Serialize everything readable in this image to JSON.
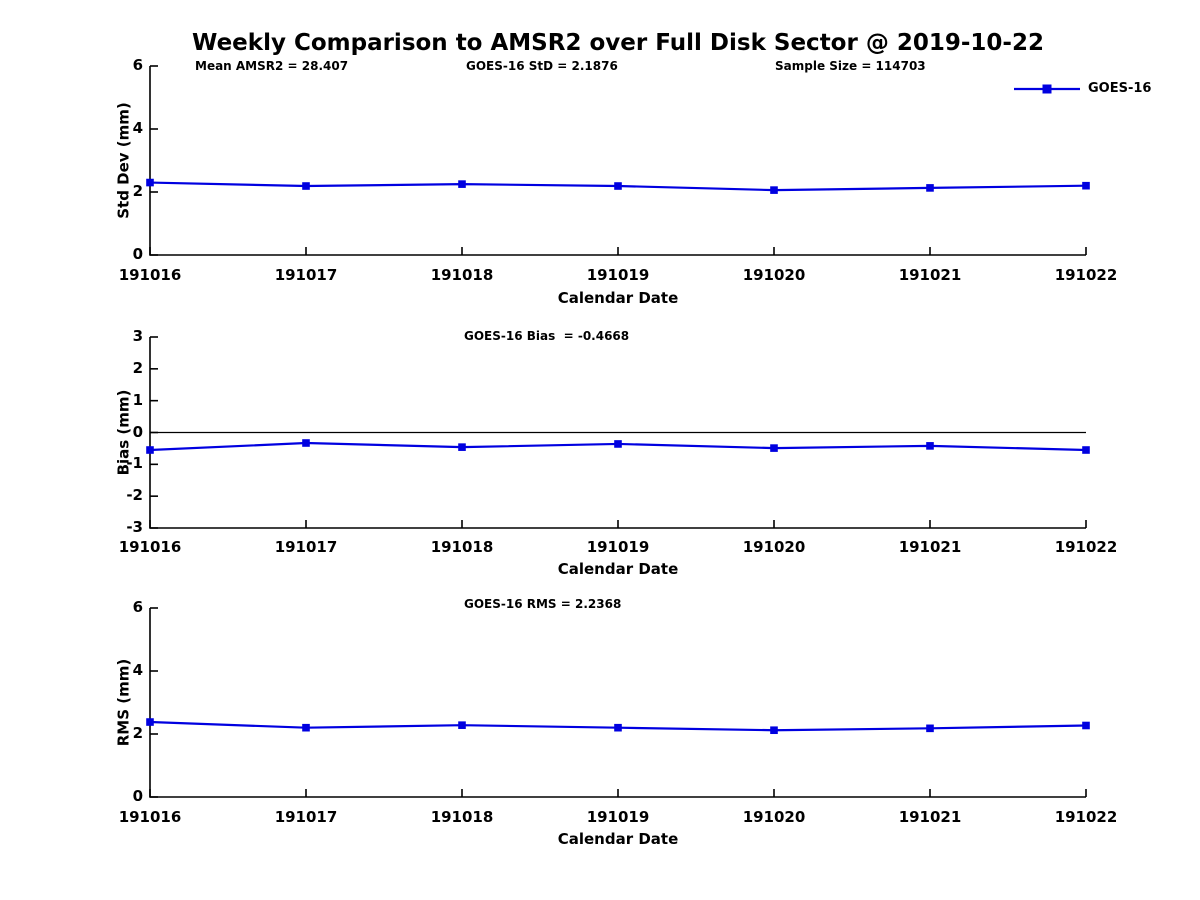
{
  "title": "Weekly Comparison to AMSR2 over Full Disk Sector @ 2019-10-22",
  "colors": {
    "line": "#0000E0",
    "axis": "#000000",
    "zero_line": "#000000",
    "background": "#ffffff",
    "text": "#000000"
  },
  "chart_data": [
    {
      "type": "line",
      "panel": "std-dev",
      "annotations": [
        {
          "text": "Mean AMSR2 = 28.407"
        },
        {
          "text": "GOES-16 StD = 2.1876"
        },
        {
          "text": "Sample Size = 114703"
        }
      ],
      "categories": [
        "191016",
        "191017",
        "191018",
        "191019",
        "191020",
        "191021",
        "191022"
      ],
      "series": [
        {
          "name": "GOES-16",
          "values": [
            2.3,
            2.19,
            2.25,
            2.19,
            2.06,
            2.13,
            2.2
          ]
        }
      ],
      "xlabel": "Calendar Date",
      "ylabel": "Std Dev (mm)",
      "ylim": [
        0,
        6
      ],
      "yticks": [
        6,
        4,
        2,
        0
      ],
      "grid": false,
      "zero_line": false,
      "legend": {
        "visible": true,
        "position": "top-right-outside",
        "entries": [
          "GOES-16"
        ]
      }
    },
    {
      "type": "line",
      "panel": "bias",
      "annotations": [
        {
          "text": "GOES-16 Bias  = -0.4668"
        }
      ],
      "categories": [
        "191016",
        "191017",
        "191018",
        "191019",
        "191020",
        "191021",
        "191022"
      ],
      "series": [
        {
          "name": "GOES-16",
          "values": [
            -0.55,
            -0.33,
            -0.46,
            -0.36,
            -0.49,
            -0.42,
            -0.55
          ]
        }
      ],
      "xlabel": "Calendar Date",
      "ylabel": "Bias (mm)",
      "ylim": [
        -3,
        3
      ],
      "yticks": [
        3,
        2,
        1,
        0,
        -1,
        -2,
        -3
      ],
      "grid": false,
      "zero_line": true,
      "legend": {
        "visible": false,
        "entries": []
      }
    },
    {
      "type": "line",
      "panel": "rms",
      "annotations": [
        {
          "text": "GOES-16 RMS = 2.2368"
        }
      ],
      "categories": [
        "191016",
        "191017",
        "191018",
        "191019",
        "191020",
        "191021",
        "191022"
      ],
      "series": [
        {
          "name": "GOES-16",
          "values": [
            2.38,
            2.2,
            2.28,
            2.2,
            2.12,
            2.18,
            2.27
          ]
        }
      ],
      "xlabel": "Calendar Date",
      "ylabel": "RMS (mm)",
      "ylim": [
        0,
        6
      ],
      "yticks": [
        6,
        4,
        2,
        0
      ],
      "grid": false,
      "zero_line": false,
      "legend": {
        "visible": false,
        "entries": []
      }
    }
  ]
}
